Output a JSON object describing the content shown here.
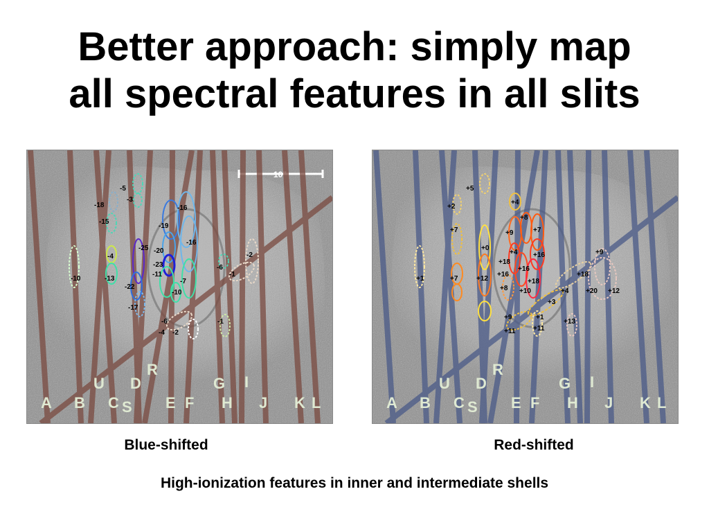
{
  "title_line1": "Better approach: simply map",
  "title_line2": "all spectral features in all slits",
  "caption_left": "Blue-shifted",
  "caption_right": "Red-shifted",
  "footnote": "High-ionization features in inner and intermediate shells",
  "scale_bar_label": "10\"",
  "colors": {
    "left_slit": "#7a4a40",
    "right_slit": "#4a5a88",
    "letter": "#dfe9d2"
  },
  "slit_letters": [
    "A",
    "B",
    "C",
    "S",
    "U",
    "D",
    "R",
    "E",
    "F",
    "G",
    "H",
    "I",
    "J",
    "K",
    "L"
  ],
  "blue_features": [
    "-5",
    "-3",
    "-18",
    "-15",
    "-16",
    "-19",
    "-16",
    "-4",
    "-25",
    "-20",
    "-10",
    "-23",
    "-13",
    "-6",
    "-2",
    "-1",
    "-11",
    "-7",
    "-22",
    "-10",
    "-17",
    "-6",
    "-4",
    "-2",
    "-1"
  ],
  "red_features": [
    "+5",
    "+4",
    "+2",
    "+8",
    "+7",
    "+9",
    "+7",
    "+0",
    "+16",
    "+4",
    "+18",
    "+16",
    "+9",
    "+7",
    "+12",
    "+16",
    "+18",
    "+18",
    "+1",
    "+8",
    "+10",
    "+4",
    "+20",
    "+12",
    "+3",
    "+9",
    "+1",
    "+11",
    "+11",
    "+13"
  ]
}
